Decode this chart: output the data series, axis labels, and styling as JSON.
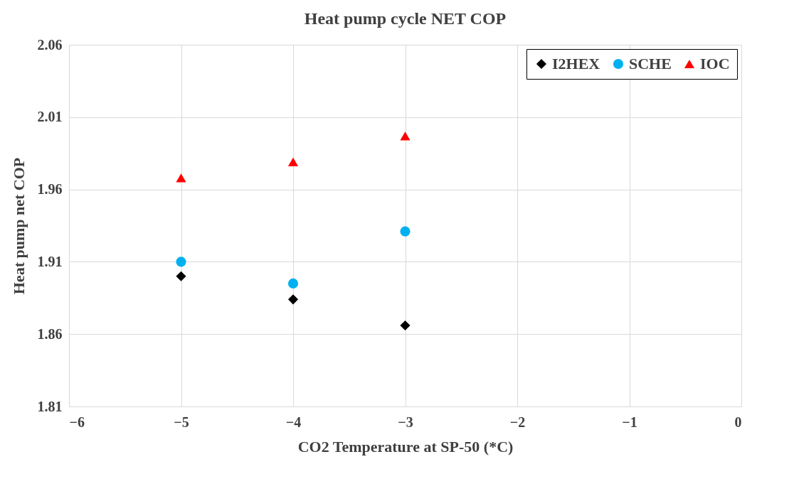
{
  "chart_data": {
    "type": "scatter",
    "title": "Heat pump  cycle NET COP",
    "xlabel": "CO2 Temperature  at SP-50 (*C)",
    "ylabel": "Heat pump  net COP",
    "x": [
      -5,
      -4,
      -3
    ],
    "series": [
      {
        "name": "I2HEX",
        "color": "#000000",
        "marker": "diamond",
        "values": [
          1.9,
          1.884,
          1.866
        ]
      },
      {
        "name": "SCHE",
        "color": "#00b0f0",
        "marker": "circle",
        "values": [
          1.91,
          1.895,
          1.931
        ]
      },
      {
        "name": "IOC",
        "color": "#ff0000",
        "marker": "triangle",
        "values": [
          1.968,
          1.979,
          1.997
        ]
      }
    ],
    "xlim": [
      -6,
      0
    ],
    "xticks": [
      -6,
      -5,
      -4,
      -3,
      -2,
      -1,
      0
    ],
    "ylim": [
      1.81,
      2.06
    ],
    "yticks": [
      1.81,
      1.86,
      1.91,
      1.96,
      2.01,
      2.06
    ],
    "grid": true,
    "legend": "top right"
  }
}
